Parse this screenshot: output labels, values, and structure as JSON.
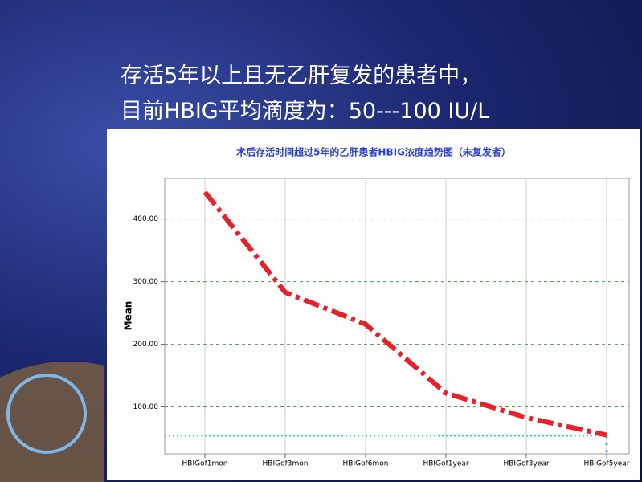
{
  "slide": {
    "title_lines": [
      "存活5年以上且无乙肝复发的患者中，",
      "目前HBIG平均滴度为：50---100 IU/L"
    ]
  },
  "chart_data": {
    "type": "line",
    "title": "术后存活时间超过5年的乙肝患者HBIG浓度趋势图（未复发者）",
    "y_label": "Mean",
    "categories": [
      "HBIGof1mon",
      "HBIGof3mon",
      "HBIGof6mon",
      "HBIGof1year",
      "HBIGof3year",
      "HBIGof5year"
    ],
    "series": [
      {
        "name": "Mean",
        "color": "#e8202a",
        "values": [
          443,
          283,
          232,
          122,
          83,
          55
        ]
      }
    ],
    "reference_line": {
      "value": 54,
      "color": "#19d6d6"
    },
    "ylim": [
      25,
      465
    ],
    "yticks": [
      {
        "value": 100,
        "label": "100.00"
      },
      {
        "value": 200,
        "label": "200.00"
      },
      {
        "value": 300,
        "label": "300.00"
      },
      {
        "value": 400,
        "label": "400.00"
      }
    ],
    "grid": true
  }
}
